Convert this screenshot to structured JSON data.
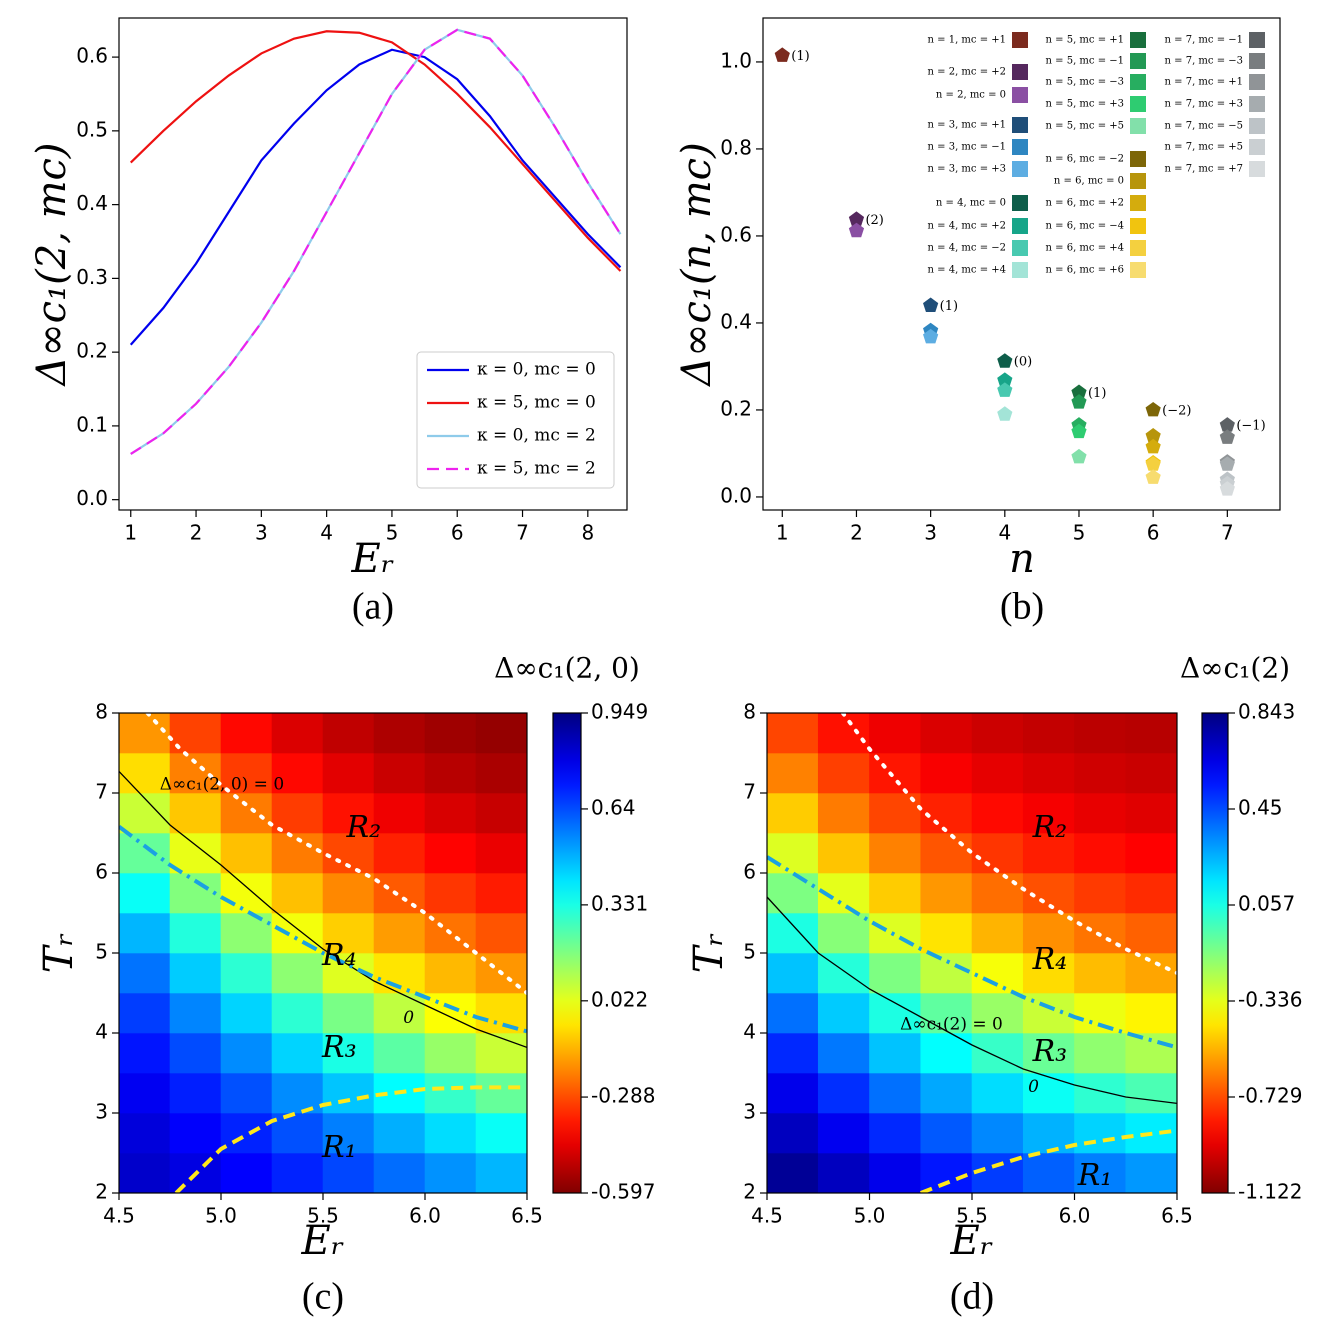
{
  "chart_data": [
    {
      "type": "line",
      "panel_label": "(a)",
      "xlabel": "Eᵣ",
      "ylabel": "Δ∞c₁(2, mc)",
      "xlim": [
        0.82,
        8.6
      ],
      "ylim": [
        -0.014,
        0.653
      ],
      "xticks": [
        1,
        2,
        3,
        4,
        5,
        6,
        7,
        8
      ],
      "yticks": [
        {
          "value": 0,
          "label": "0.0"
        },
        0.1,
        0.2,
        0.3,
        0.4,
        0.5,
        0.6
      ],
      "legend": "lower right",
      "x": [
        1,
        1.5,
        2,
        2.5,
        3,
        3.5,
        4,
        4.5,
        5,
        5.5,
        6,
        6.5,
        7,
        7.5,
        8,
        8.5
      ],
      "series": [
        {
          "name": "κ = 0, mc = 0",
          "color": "#0000ee",
          "linestyle": "solid",
          "values": [
            0.21,
            0.26,
            0.32,
            0.39,
            0.46,
            0.51,
            0.555,
            0.59,
            0.61,
            0.6,
            0.57,
            0.52,
            0.46,
            0.41,
            0.36,
            0.315
          ]
        },
        {
          "name": "κ = 5, mc = 0",
          "color": "#ee1111",
          "linestyle": "solid",
          "values": [
            0.457,
            0.5,
            0.54,
            0.575,
            0.605,
            0.625,
            0.635,
            0.633,
            0.62,
            0.59,
            0.55,
            0.505,
            0.455,
            0.405,
            0.355,
            0.31
          ]
        },
        {
          "name": "κ = 0, mc = 2",
          "color": "#8ecbea",
          "linestyle": "solid",
          "values": [
            0.062,
            0.09,
            0.13,
            0.18,
            0.24,
            0.31,
            0.39,
            0.47,
            0.55,
            0.61,
            0.637,
            0.625,
            0.575,
            0.505,
            0.43,
            0.36
          ]
        },
        {
          "name": "κ = 5, mc = 2",
          "color": "#ee22ee",
          "linestyle": "dashed",
          "values": [
            0.062,
            0.09,
            0.13,
            0.18,
            0.24,
            0.31,
            0.39,
            0.47,
            0.55,
            0.61,
            0.637,
            0.625,
            0.575,
            0.505,
            0.43,
            0.36
          ]
        }
      ]
    },
    {
      "type": "scatter",
      "panel_label": "(b)",
      "xlabel": "n",
      "ylabel": "Δ∞c₁(n, mc)",
      "xlim": [
        0.74,
        7.71
      ],
      "ylim": [
        -0.03,
        1.101
      ],
      "xticks": [
        1,
        2,
        3,
        4,
        5,
        6,
        7
      ],
      "yticks": [
        {
          "value": 0,
          "label": "0.0"
        },
        0.2,
        0.4,
        0.6,
        0.8,
        {
          "value": 1,
          "label": "1.0"
        }
      ],
      "point_labels": [
        "(1)",
        "(2)",
        "(1)",
        "(0)",
        "(1)",
        "(−2)",
        "(−1)"
      ],
      "series": [
        {
          "name": "n = 1, mc = +1",
          "color": "#7b2a1e",
          "x": [
            1
          ],
          "values": [
            1.015
          ]
        },
        {
          "name": "n = 2, mc = +2",
          "color": "#55285e",
          "x": [
            2
          ],
          "values": [
            0.638
          ]
        },
        {
          "name": "n = 2, mc = 0",
          "color": "#8a4fa3",
          "x": [
            2
          ],
          "values": [
            0.612
          ]
        },
        {
          "name": "n = 3, mc = +1",
          "color": "#1f4e79",
          "x": [
            3
          ],
          "values": [
            0.44
          ]
        },
        {
          "name": "n = 3, mc = −1",
          "color": "#2e86c1",
          "x": [
            3
          ],
          "values": [
            0.382
          ]
        },
        {
          "name": "n = 3, mc = +3",
          "color": "#5dade2",
          "x": [
            3
          ],
          "values": [
            0.368
          ]
        },
        {
          "name": "n = 4, mc = 0",
          "color": "#0e5e4a",
          "x": [
            4
          ],
          "values": [
            0.312
          ]
        },
        {
          "name": "n = 4, mc = +2",
          "color": "#17a589",
          "x": [
            4
          ],
          "values": [
            0.268
          ]
        },
        {
          "name": "n = 4, mc = −2",
          "color": "#48c9b0",
          "x": [
            4
          ],
          "values": [
            0.245
          ]
        },
        {
          "name": "n = 4, mc = +4",
          "color": "#a3e4d7",
          "x": [
            4
          ],
          "values": [
            0.19
          ]
        },
        {
          "name": "n = 5, mc = +1",
          "color": "#196f3d",
          "x": [
            5
          ],
          "values": [
            0.24
          ]
        },
        {
          "name": "n = 5, mc = −1",
          "color": "#229954",
          "x": [
            5
          ],
          "values": [
            0.218
          ]
        },
        {
          "name": "n = 5, mc = −3",
          "color": "#27ae60",
          "x": [
            5
          ],
          "values": [
            0.165
          ]
        },
        {
          "name": "n = 5, mc = +3",
          "color": "#2ecc71",
          "x": [
            5
          ],
          "values": [
            0.15
          ]
        },
        {
          "name": "n = 5, mc = +5",
          "color": "#82e0aa",
          "x": [
            5
          ],
          "values": [
            0.092
          ]
        },
        {
          "name": "n = 6, mc = −2",
          "color": "#7d6608",
          "x": [
            6
          ],
          "values": [
            0.2
          ]
        },
        {
          "name": "n = 6, mc = 0",
          "color": "#b7950b",
          "x": [
            6
          ],
          "values": [
            0.14
          ]
        },
        {
          "name": "n = 6, mc = +2",
          "color": "#d4ac0d",
          "x": [
            6
          ],
          "values": [
            0.115
          ]
        },
        {
          "name": "n = 6, mc = −4",
          "color": "#f1c40f",
          "x": [
            6
          ],
          "values": [
            0.078
          ]
        },
        {
          "name": "n = 6, mc = +4",
          "color": "#f4d03f",
          "x": [
            6
          ],
          "values": [
            0.075
          ]
        },
        {
          "name": "n = 6, mc = +6",
          "color": "#f7dc6f",
          "x": [
            6
          ],
          "values": [
            0.045
          ]
        },
        {
          "name": "n = 7, mc = −1",
          "color": "#5d6165",
          "x": [
            7
          ],
          "values": [
            0.165
          ]
        },
        {
          "name": "n = 7, mc = −3",
          "color": "#797d7f",
          "x": [
            7
          ],
          "values": [
            0.137
          ]
        },
        {
          "name": "n = 7, mc = +1",
          "color": "#909497",
          "x": [
            7
          ],
          "values": [
            0.08
          ]
        },
        {
          "name": "n = 7, mc = +3",
          "color": "#a6acaf",
          "x": [
            7
          ],
          "values": [
            0.075
          ]
        },
        {
          "name": "n = 7, mc = −5",
          "color": "#bdc3c7",
          "x": [
            7
          ],
          "values": [
            0.04
          ]
        },
        {
          "name": "n = 7, mc = +5",
          "color": "#cacfd2",
          "x": [
            7
          ],
          "values": [
            0.03
          ]
        },
        {
          "name": "n = 7, mc = +7",
          "color": "#d7dbdd",
          "x": [
            7
          ],
          "values": [
            0.018
          ]
        }
      ]
    },
    {
      "type": "heatmap",
      "panel_label": "(c)",
      "xlabel": "Eᵣ",
      "ylabel": "Tᵣ",
      "colorbar_title": "Δ∞c₁(2, 0)",
      "colormap": "jet_r",
      "xlim": [
        4.5,
        6.5
      ],
      "ylim": [
        2,
        8
      ],
      "clim": [
        -0.597,
        0.949
      ],
      "xticks": [
        4.5,
        {
          "value": 5,
          "label": "5.0"
        },
        5.5,
        {
          "value": 6,
          "label": "6.0"
        },
        6.5
      ],
      "yticks": [
        2,
        3,
        4,
        5,
        6,
        7,
        8
      ],
      "cticks": [
        0.949,
        0.64,
        0.331,
        0.022,
        -0.288,
        -0.597
      ],
      "x": [
        4.625,
        4.875,
        5.125,
        5.375,
        5.625,
        5.875,
        6.125,
        6.375
      ],
      "y": [
        2.25,
        2.75,
        3.25,
        3.75,
        4.25,
        4.75,
        5.25,
        5.75,
        6.25,
        6.75,
        7.25,
        7.75
      ],
      "z": [
        [
          0.835,
          0.8,
          0.757,
          0.704,
          0.649,
          0.591,
          0.534,
          0.48
        ],
        [
          0.81,
          0.761,
          0.704,
          0.634,
          0.563,
          0.491,
          0.421,
          0.357
        ],
        [
          0.775,
          0.71,
          0.634,
          0.544,
          0.457,
          0.371,
          0.289,
          0.216
        ],
        [
          0.726,
          0.642,
          0.544,
          0.434,
          0.33,
          0.231,
          0.141,
          0.063
        ],
        [
          0.664,
          0.554,
          0.434,
          0.302,
          0.186,
          0.079,
          -0.012,
          -0.068
        ],
        [
          0.582,
          0.446,
          0.302,
          0.156,
          0.032,
          -0.057,
          -0.124,
          -0.177
        ],
        [
          0.48,
          0.317,
          0.156,
          0,
          -0.09,
          -0.167,
          -0.229,
          -0.277
        ],
        [
          0.357,
          0.172,
          0,
          -0.112,
          -0.198,
          -0.268,
          -0.322,
          -0.363
        ],
        [
          0.216,
          0.016,
          -0.112,
          -0.218,
          -0.295,
          -0.355,
          -0.4,
          -0.434
        ],
        [
          0.063,
          -0.102,
          -0.218,
          -0.313,
          -0.378,
          -0.427,
          -0.463,
          -0.489
        ],
        [
          -0.068,
          -0.209,
          -0.313,
          -0.393,
          -0.446,
          -0.485,
          -0.513,
          -0.532
        ],
        [
          -0.177,
          -0.304,
          -0.393,
          -0.458,
          -0.499,
          -0.528,
          -0.55,
          -0.565
        ]
      ],
      "contours": [
        {
          "color": "#ffffff",
          "linestyle": "dotted",
          "x": [
            4.64,
            4.8,
            5.0,
            5.25,
            5.5,
            5.75,
            6.0,
            6.25,
            6.5
          ],
          "y": [
            8,
            7.55,
            7.1,
            6.6,
            6.25,
            5.93,
            5.5,
            5.0,
            4.5
          ]
        },
        {
          "color": "#000000",
          "linestyle": "solid",
          "label": "0",
          "x": [
            4.5,
            4.75,
            5.0,
            5.25,
            5.5,
            5.75,
            6.0,
            6.25,
            6.5
          ],
          "y": [
            7.27,
            6.6,
            6.1,
            5.55,
            5.05,
            4.65,
            4.35,
            4.05,
            3.82
          ]
        },
        {
          "color": "#1ba1e2",
          "linestyle": "dashdot",
          "x": [
            4.5,
            4.75,
            5.0,
            5.25,
            5.5,
            5.75,
            6.0,
            6.25,
            6.5
          ],
          "y": [
            6.58,
            6.1,
            5.7,
            5.35,
            5.0,
            4.7,
            4.45,
            4.2,
            4.02
          ]
        },
        {
          "color": "#ffe81a",
          "linestyle": "dashed",
          "x": [
            4.78,
            4.9,
            5.0,
            5.25,
            5.5,
            5.75,
            6.0,
            6.25,
            6.5
          ],
          "y": [
            2,
            2.3,
            2.55,
            2.9,
            3.1,
            3.22,
            3.3,
            3.32,
            3.32
          ]
        }
      ],
      "annotation": "Δ∞c₁(2, 0) = 0",
      "regions": [
        "R₂",
        "R₄",
        "R₃",
        "R₁"
      ]
    },
    {
      "type": "heatmap",
      "panel_label": "(d)",
      "xlabel": "Eᵣ",
      "ylabel": "Tᵣ",
      "colorbar_title": "Δ∞c₁(2)",
      "colormap": "jet_r",
      "xlim": [
        4.5,
        6.5
      ],
      "ylim": [
        2,
        8
      ],
      "clim": [
        -1.122,
        0.843
      ],
      "xticks": [
        4.5,
        {
          "value": 5,
          "label": "5.0"
        },
        5.5,
        {
          "value": 6,
          "label": "6.0"
        },
        6.5
      ],
      "yticks": [
        2,
        3,
        4,
        5,
        6,
        7,
        8
      ],
      "cticks": [
        0.843,
        0.45,
        0.057,
        -0.336,
        -0.729,
        -1.122
      ],
      "x": [
        4.625,
        4.875,
        5.125,
        5.375,
        5.625,
        5.875,
        6.125,
        6.375
      ],
      "y": [
        2.25,
        2.75,
        3.25,
        3.75,
        4.25,
        4.75,
        5.25,
        5.75,
        6.25,
        6.75,
        7.25,
        7.75
      ],
      "z": [
        [
          0.8,
          0.721,
          0.635,
          0.557,
          0.482,
          0.412,
          0.352,
          0.305
        ],
        [
          0.72,
          0.626,
          0.52,
          0.426,
          0.336,
          0.255,
          0.19,
          0.139
        ],
        [
          0.635,
          0.508,
          0.382,
          0.273,
          0.172,
          0.087,
          0.018,
          -0.039
        ],
        [
          0.52,
          0.367,
          0.222,
          0.104,
          0,
          -0.096,
          -0.172,
          -0.228
        ],
        [
          0.382,
          0.207,
          0.052,
          -0.077,
          -0.189,
          -0.281,
          -0.353,
          -0.404
        ],
        [
          0.222,
          0.035,
          -0.134,
          -0.264,
          -0.37,
          -0.453,
          -0.515,
          -0.559
        ],
        [
          0.052,
          -0.153,
          -0.319,
          -0.437,
          -0.53,
          -0.601,
          -0.652,
          -0.689
        ],
        [
          -0.134,
          -0.336,
          -0.484,
          -0.586,
          -0.664,
          -0.723,
          -0.765,
          -0.793
        ],
        [
          -0.319,
          -0.499,
          -0.627,
          -0.712,
          -0.774,
          -0.821,
          -0.853,
          -0.876
        ],
        [
          -0.484,
          -0.64,
          -0.744,
          -0.812,
          -0.86,
          -0.894,
          -0.92,
          -0.936
        ],
        [
          -0.627,
          -0.755,
          -0.836,
          -0.888,
          -0.925,
          -0.949,
          -0.969,
          -0.981
        ],
        [
          -0.744,
          -0.845,
          -0.908,
          -0.947,
          -0.974,
          -0.992,
          -1.007,
          -1.015
        ]
      ],
      "contours": [
        {
          "color": "#ffffff",
          "linestyle": "dotted",
          "x": [
            4.87,
            5.0,
            5.25,
            5.5,
            5.75,
            6.0,
            6.25,
            6.5
          ],
          "y": [
            8,
            7.55,
            6.8,
            6.25,
            5.8,
            5.4,
            5.05,
            4.75
          ]
        },
        {
          "color": "#000000",
          "linestyle": "solid",
          "label": "0",
          "x": [
            4.5,
            4.75,
            5.0,
            5.25,
            5.5,
            5.75,
            6.0,
            6.25,
            6.5
          ],
          "y": [
            5.7,
            5.0,
            4.55,
            4.2,
            3.85,
            3.55,
            3.35,
            3.2,
            3.12
          ]
        },
        {
          "color": "#1ba1e2",
          "linestyle": "dashdot",
          "x": [
            4.5,
            4.75,
            5.0,
            5.25,
            5.5,
            5.75,
            6.0,
            6.25,
            6.5
          ],
          "y": [
            6.2,
            5.8,
            5.4,
            5.05,
            4.75,
            4.45,
            4.2,
            4.0,
            3.82
          ]
        },
        {
          "color": "#ffe81a",
          "linestyle": "dashed",
          "x": [
            5.25,
            5.5,
            5.75,
            6.0,
            6.25,
            6.5
          ],
          "y": [
            2,
            2.25,
            2.45,
            2.6,
            2.7,
            2.78
          ]
        }
      ],
      "annotation": "Δ∞c₁(2) = 0",
      "regions": [
        "R₂",
        "R₄",
        "R₃",
        "R₁"
      ]
    }
  ]
}
